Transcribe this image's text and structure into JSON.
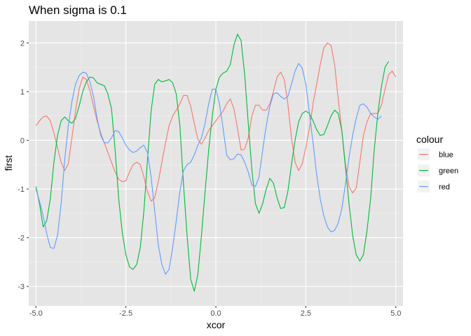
{
  "chart_data": {
    "type": "line",
    "title": "When sigma is 0.1",
    "xlabel": "xcor",
    "ylabel": "first",
    "xlim": [
      -5.2,
      5.2
    ],
    "ylim": [
      -3.4,
      2.45
    ],
    "x_ticks": [
      -5.0,
      -2.5,
      0.0,
      2.5,
      5.0
    ],
    "x_tick_labels": [
      "-5.0",
      "-2.5",
      "0.0",
      "2.5",
      "5.0"
    ],
    "y_ticks": [
      -3,
      -2,
      -1,
      0,
      1,
      2
    ],
    "y_tick_labels": [
      "-3",
      "-2",
      "-1",
      "0",
      "1",
      "2"
    ],
    "grid": true,
    "background": "#e5e5e5",
    "legend": {
      "title": "colour",
      "position": "right"
    },
    "series": [
      {
        "name": "blue",
        "color": "#f8766d",
        "points": [
          [
            -5.0,
            0.3
          ],
          [
            -4.9,
            0.4
          ],
          [
            -4.8,
            0.48
          ],
          [
            -4.7,
            0.5
          ],
          [
            -4.6,
            0.4
          ],
          [
            -4.5,
            0.15
          ],
          [
            -4.4,
            -0.15
          ],
          [
            -4.3,
            -0.45
          ],
          [
            -4.2,
            -0.62
          ],
          [
            -4.1,
            -0.48
          ],
          [
            -4.0,
            0.05
          ],
          [
            -3.9,
            0.6
          ],
          [
            -3.8,
            1.05
          ],
          [
            -3.7,
            1.3
          ],
          [
            -3.6,
            1.25
          ],
          [
            -3.5,
            1.02
          ],
          [
            -3.4,
            0.7
          ],
          [
            -3.3,
            0.4
          ],
          [
            -3.2,
            0.15
          ],
          [
            -3.1,
            -0.05
          ],
          [
            -3.0,
            -0.25
          ],
          [
            -2.9,
            -0.45
          ],
          [
            -2.8,
            -0.65
          ],
          [
            -2.7,
            -0.8
          ],
          [
            -2.6,
            -0.85
          ],
          [
            -2.5,
            -0.83
          ],
          [
            -2.4,
            -0.65
          ],
          [
            -2.3,
            -0.5
          ],
          [
            -2.2,
            -0.45
          ],
          [
            -2.1,
            -0.5
          ],
          [
            -2.0,
            -0.75
          ],
          [
            -1.9,
            -1.05
          ],
          [
            -1.8,
            -1.25
          ],
          [
            -1.7,
            -1.18
          ],
          [
            -1.6,
            -0.85
          ],
          [
            -1.5,
            -0.45
          ],
          [
            -1.4,
            -0.05
          ],
          [
            -1.3,
            0.3
          ],
          [
            -1.2,
            0.5
          ],
          [
            -1.1,
            0.62
          ],
          [
            -1.0,
            0.75
          ],
          [
            -0.9,
            0.92
          ],
          [
            -0.8,
            0.92
          ],
          [
            -0.7,
            0.7
          ],
          [
            -0.6,
            0.35
          ],
          [
            -0.5,
            0.02
          ],
          [
            -0.4,
            -0.08
          ],
          [
            -0.3,
            0.05
          ],
          [
            -0.2,
            0.2
          ],
          [
            -0.1,
            0.3
          ],
          [
            0.0,
            0.4
          ],
          [
            0.1,
            0.5
          ],
          [
            0.2,
            0.6
          ],
          [
            0.3,
            0.75
          ],
          [
            0.4,
            0.85
          ],
          [
            0.5,
            0.65
          ],
          [
            0.6,
            0.25
          ],
          [
            0.7,
            -0.2
          ],
          [
            0.8,
            -0.18
          ],
          [
            0.9,
            0.05
          ],
          [
            1.0,
            0.5
          ],
          [
            1.1,
            0.72
          ],
          [
            1.2,
            0.72
          ],
          [
            1.3,
            0.62
          ],
          [
            1.4,
            0.62
          ],
          [
            1.5,
            0.75
          ],
          [
            1.6,
            1.0
          ],
          [
            1.7,
            1.3
          ],
          [
            1.8,
            1.4
          ],
          [
            1.9,
            1.25
          ],
          [
            2.0,
            0.75
          ],
          [
            2.1,
            0.05
          ],
          [
            2.2,
            -0.45
          ],
          [
            2.3,
            -0.62
          ],
          [
            2.4,
            -0.48
          ],
          [
            2.5,
            -0.15
          ],
          [
            2.6,
            0.25
          ],
          [
            2.7,
            0.75
          ],
          [
            2.8,
            1.15
          ],
          [
            2.9,
            1.55
          ],
          [
            3.0,
            1.9
          ],
          [
            3.1,
            2.0
          ],
          [
            3.2,
            1.95
          ],
          [
            3.3,
            1.55
          ],
          [
            3.4,
            0.85
          ],
          [
            3.5,
            0.2
          ],
          [
            3.6,
            -0.5
          ],
          [
            3.7,
            -0.95
          ],
          [
            3.8,
            -1.08
          ],
          [
            3.9,
            -0.98
          ],
          [
            4.0,
            -0.45
          ],
          [
            4.1,
            0.1
          ],
          [
            4.2,
            0.38
          ],
          [
            4.3,
            0.55
          ],
          [
            4.4,
            0.55
          ],
          [
            4.5,
            0.55
          ],
          [
            4.6,
            0.72
          ],
          [
            4.7,
            1.05
          ],
          [
            4.8,
            1.35
          ],
          [
            4.9,
            1.42
          ],
          [
            5.0,
            1.3
          ]
        ]
      },
      {
        "name": "green",
        "color": "#00ba38",
        "points": [
          [
            -5.0,
            -0.95
          ],
          [
            -4.9,
            -1.3
          ],
          [
            -4.8,
            -1.78
          ],
          [
            -4.7,
            -1.65
          ],
          [
            -4.6,
            -1.2
          ],
          [
            -4.5,
            -0.45
          ],
          [
            -4.4,
            0.1
          ],
          [
            -4.3,
            0.4
          ],
          [
            -4.2,
            0.48
          ],
          [
            -4.1,
            0.4
          ],
          [
            -4.0,
            0.35
          ],
          [
            -3.9,
            0.45
          ],
          [
            -3.8,
            0.7
          ],
          [
            -3.7,
            1.0
          ],
          [
            -3.6,
            1.2
          ],
          [
            -3.5,
            1.3
          ],
          [
            -3.4,
            1.28
          ],
          [
            -3.3,
            1.18
          ],
          [
            -3.2,
            1.15
          ],
          [
            -3.1,
            1.12
          ],
          [
            -3.0,
            0.95
          ],
          [
            -2.9,
            0.65
          ],
          [
            -2.8,
            -0.2
          ],
          [
            -2.7,
            -1.2
          ],
          [
            -2.6,
            -1.9
          ],
          [
            -2.5,
            -2.35
          ],
          [
            -2.4,
            -2.6
          ],
          [
            -2.3,
            -2.65
          ],
          [
            -2.2,
            -2.55
          ],
          [
            -2.1,
            -2.2
          ],
          [
            -2.0,
            -1.45
          ],
          [
            -1.9,
            -0.4
          ],
          [
            -1.8,
            0.6
          ],
          [
            -1.7,
            1.15
          ],
          [
            -1.6,
            1.25
          ],
          [
            -1.5,
            1.2
          ],
          [
            -1.4,
            1.22
          ],
          [
            -1.3,
            1.25
          ],
          [
            -1.2,
            1.18
          ],
          [
            -1.1,
            0.95
          ],
          [
            -1.0,
            0.3
          ],
          [
            -0.9,
            -0.9
          ],
          [
            -0.8,
            -1.95
          ],
          [
            -0.7,
            -2.85
          ],
          [
            -0.6,
            -3.1
          ],
          [
            -0.5,
            -2.75
          ],
          [
            -0.4,
            -1.95
          ],
          [
            -0.3,
            -1.05
          ],
          [
            -0.2,
            -0.2
          ],
          [
            -0.1,
            0.5
          ],
          [
            0.0,
            1.05
          ],
          [
            0.1,
            1.3
          ],
          [
            0.2,
            1.38
          ],
          [
            0.3,
            1.42
          ],
          [
            0.4,
            1.55
          ],
          [
            0.5,
            1.95
          ],
          [
            0.6,
            2.18
          ],
          [
            0.7,
            2.05
          ],
          [
            0.8,
            1.35
          ],
          [
            0.9,
            0.35
          ],
          [
            1.0,
            -0.6
          ],
          [
            1.1,
            -1.3
          ],
          [
            1.2,
            -1.5
          ],
          [
            1.3,
            -1.3
          ],
          [
            1.4,
            -1.0
          ],
          [
            1.5,
            -0.78
          ],
          [
            1.6,
            -0.88
          ],
          [
            1.7,
            -1.18
          ],
          [
            1.8,
            -1.4
          ],
          [
            1.9,
            -1.38
          ],
          [
            2.0,
            -1.05
          ],
          [
            2.1,
            -0.5
          ],
          [
            2.2,
            0.0
          ],
          [
            2.3,
            0.38
          ],
          [
            2.4,
            0.55
          ],
          [
            2.5,
            0.6
          ],
          [
            2.6,
            0.55
          ],
          [
            2.7,
            0.4
          ],
          [
            2.8,
            0.22
          ],
          [
            2.9,
            0.1
          ],
          [
            3.0,
            0.12
          ],
          [
            3.1,
            0.3
          ],
          [
            3.2,
            0.5
          ],
          [
            3.3,
            0.62
          ],
          [
            3.4,
            0.55
          ],
          [
            3.5,
            0.2
          ],
          [
            3.6,
            -0.55
          ],
          [
            3.7,
            -1.3
          ],
          [
            3.8,
            -1.95
          ],
          [
            3.9,
            -2.35
          ],
          [
            4.0,
            -2.48
          ],
          [
            4.1,
            -2.35
          ],
          [
            4.2,
            -1.85
          ],
          [
            4.3,
            -1.2
          ],
          [
            4.4,
            -0.2
          ],
          [
            4.5,
            0.55
          ],
          [
            4.6,
            1.1
          ],
          [
            4.7,
            1.5
          ],
          [
            4.8,
            1.62
          ]
        ]
      },
      {
        "name": "red",
        "color": "#619cff",
        "points": [
          [
            -5.0,
            -1.0
          ],
          [
            -4.9,
            -1.25
          ],
          [
            -4.8,
            -1.55
          ],
          [
            -4.7,
            -1.92
          ],
          [
            -4.6,
            -2.2
          ],
          [
            -4.5,
            -2.22
          ],
          [
            -4.4,
            -1.95
          ],
          [
            -4.3,
            -1.3
          ],
          [
            -4.2,
            -0.4
          ],
          [
            -4.1,
            0.3
          ],
          [
            -4.0,
            0.8
          ],
          [
            -3.9,
            1.15
          ],
          [
            -3.8,
            1.33
          ],
          [
            -3.7,
            1.4
          ],
          [
            -3.6,
            1.38
          ],
          [
            -3.5,
            1.2
          ],
          [
            -3.4,
            0.9
          ],
          [
            -3.3,
            0.45
          ],
          [
            -3.2,
            0.1
          ],
          [
            -3.1,
            -0.05
          ],
          [
            -3.0,
            -0.05
          ],
          [
            -2.9,
            0.05
          ],
          [
            -2.8,
            0.2
          ],
          [
            -2.7,
            0.18
          ],
          [
            -2.6,
            0.05
          ],
          [
            -2.5,
            -0.1
          ],
          [
            -2.4,
            -0.2
          ],
          [
            -2.3,
            -0.25
          ],
          [
            -2.2,
            -0.22
          ],
          [
            -2.1,
            -0.15
          ],
          [
            -2.0,
            -0.1
          ],
          [
            -1.9,
            -0.25
          ],
          [
            -1.8,
            -0.75
          ],
          [
            -1.7,
            -1.45
          ],
          [
            -1.6,
            -2.15
          ],
          [
            -1.5,
            -2.55
          ],
          [
            -1.4,
            -2.75
          ],
          [
            -1.3,
            -2.65
          ],
          [
            -1.2,
            -2.2
          ],
          [
            -1.1,
            -1.65
          ],
          [
            -1.0,
            -1.05
          ],
          [
            -0.9,
            -0.62
          ],
          [
            -0.8,
            -0.5
          ],
          [
            -0.7,
            -0.45
          ],
          [
            -0.6,
            -0.3
          ],
          [
            -0.5,
            -0.1
          ],
          [
            -0.4,
            0.05
          ],
          [
            -0.3,
            0.35
          ],
          [
            -0.2,
            0.75
          ],
          [
            -0.1,
            1.05
          ],
          [
            0.0,
            1.05
          ],
          [
            0.1,
            0.75
          ],
          [
            0.2,
            0.25
          ],
          [
            0.3,
            -0.3
          ],
          [
            0.4,
            -0.4
          ],
          [
            0.5,
            -0.38
          ],
          [
            0.6,
            -0.28
          ],
          [
            0.7,
            -0.3
          ],
          [
            0.8,
            -0.45
          ],
          [
            0.9,
            -0.65
          ],
          [
            1.0,
            -0.92
          ],
          [
            1.1,
            -0.95
          ],
          [
            1.2,
            -0.75
          ],
          [
            1.3,
            -0.2
          ],
          [
            1.4,
            0.3
          ],
          [
            1.5,
            0.7
          ],
          [
            1.6,
            0.95
          ],
          [
            1.7,
            0.98
          ],
          [
            1.8,
            0.9
          ],
          [
            1.9,
            0.85
          ],
          [
            2.0,
            0.9
          ],
          [
            2.1,
            1.15
          ],
          [
            2.2,
            1.42
          ],
          [
            2.3,
            1.58
          ],
          [
            2.4,
            1.48
          ],
          [
            2.5,
            1.15
          ],
          [
            2.6,
            0.55
          ],
          [
            2.7,
            -0.05
          ],
          [
            2.8,
            -0.7
          ],
          [
            2.9,
            -1.2
          ],
          [
            3.0,
            -1.55
          ],
          [
            3.1,
            -1.78
          ],
          [
            3.2,
            -1.88
          ],
          [
            3.3,
            -1.85
          ],
          [
            3.4,
            -1.7
          ],
          [
            3.5,
            -1.4
          ],
          [
            3.6,
            -0.9
          ],
          [
            3.7,
            -0.35
          ],
          [
            3.8,
            0.1
          ],
          [
            3.9,
            0.45
          ],
          [
            4.0,
            0.72
          ],
          [
            4.1,
            0.75
          ],
          [
            4.2,
            0.68
          ],
          [
            4.3,
            0.55
          ],
          [
            4.4,
            0.48
          ],
          [
            4.5,
            0.43
          ],
          [
            4.6,
            0.5
          ]
        ]
      }
    ]
  }
}
